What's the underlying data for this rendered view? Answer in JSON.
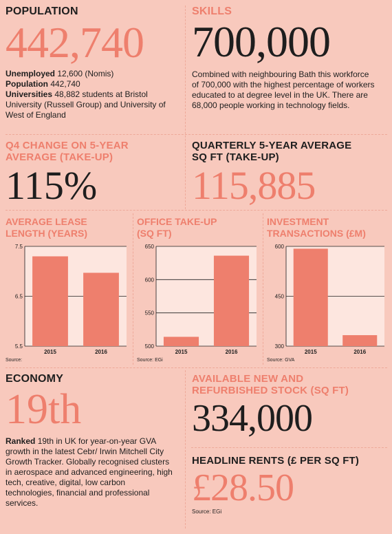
{
  "population": {
    "heading": "POPULATION",
    "figure": "442,740",
    "lines": [
      {
        "label": "Unemployed",
        "text": " 12,600 (Nomis)"
      },
      {
        "label": "Population",
        "text": " 442,740"
      },
      {
        "label": "Universities",
        "text": " 48,882 students at Bristol University (Russell Group) and University of West of England"
      }
    ]
  },
  "skills": {
    "heading": "SKILLS",
    "figure": "700,000",
    "text": "Combined with neighbouring Bath this workforce of 700,000 with the highest percentage of workers educated to at degree level in the UK. There are 68,000 people working in technology fields."
  },
  "q4_change": {
    "heading_line1": "Q4 CHANGE ON 5-YEAR",
    "heading_line2": "AVERAGE (TAKE-UP)",
    "figure": "115%"
  },
  "quarterly_avg": {
    "heading_line1": "QUARTERLY 5-YEAR AVERAGE",
    "heading_line2": "SQ FT (TAKE-UP)",
    "figure": "115,885"
  },
  "economy": {
    "heading": "ECONOMY",
    "figure": "19th",
    "ranked_label": "Ranked",
    "text": " 19th in UK for year-on-year GVA growth in the latest Cebr/ Irwin Mitchell City Growth Tracker. Globally recognised clusters in aerospace and advanced engineering, high tech, creative, digital, low carbon technologies, financial and professional services."
  },
  "available_stock": {
    "heading_line1": "AVAILABLE NEW AND",
    "heading_line2": "REFURBISHED STOCK (SQ FT)",
    "figure": "334,000"
  },
  "headline_rents": {
    "heading": "HEADLINE RENTS (£ PER SQ FT)",
    "figure": "£28.50",
    "source": "Source: EGi"
  },
  "colors": {
    "background": "#f8c9bd",
    "accent": "#ee7f6d",
    "text": "#1e1e1e",
    "chart_bg": "#fde6df"
  },
  "chart_data": [
    {
      "type": "bar",
      "title_line1": "AVERAGE LEASE",
      "title_line2": "LENGTH (YEARS)",
      "categories": [
        "2015",
        "2016"
      ],
      "values": [
        7.3,
        6.97
      ],
      "ylim": [
        5.5,
        7.5
      ],
      "yticks": [
        "7.5",
        "6.5",
        "5.5"
      ],
      "ytick_values": [
        7.5,
        6.5,
        5.5
      ],
      "grid": true,
      "source": "Source:"
    },
    {
      "type": "bar",
      "title_line1": "OFFICE TAKE-UP",
      "title_line2": "(SQ FT)",
      "categories": [
        "2015",
        "2016"
      ],
      "values": [
        514,
        636
      ],
      "ylim": [
        500,
        650
      ],
      "yticks": [
        "650",
        "600",
        "550",
        "500"
      ],
      "ytick_values": [
        650,
        600,
        550,
        500
      ],
      "grid": true,
      "source": "Source: EGi"
    },
    {
      "type": "bar",
      "title_line1": "INVESTMENT",
      "title_line2": "TRANSACTIONS (£M)",
      "categories": [
        "2015",
        "2016"
      ],
      "values": [
        593,
        333
      ],
      "ylim": [
        300,
        600
      ],
      "yticks": [
        "600",
        "450",
        "300"
      ],
      "ytick_values": [
        600,
        450,
        300
      ],
      "grid": true,
      "source": "Source: GVA"
    }
  ]
}
